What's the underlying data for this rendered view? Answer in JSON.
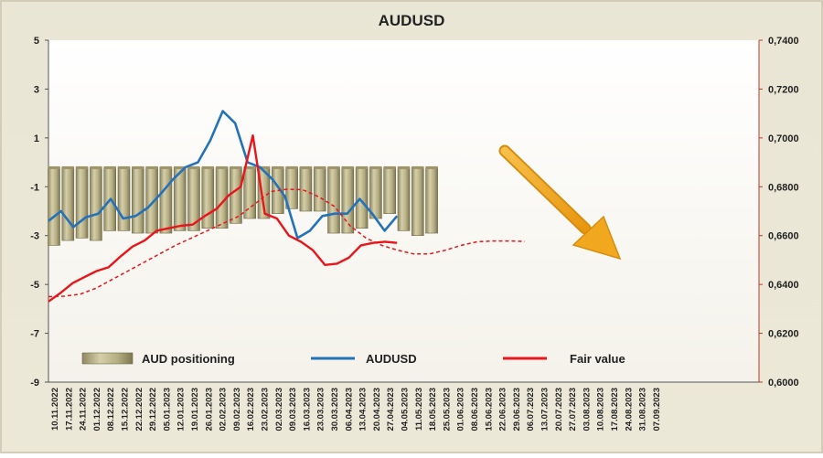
{
  "chart_data": {
    "type": "bar+line",
    "title": "AUDUSD",
    "x_dates": [
      "10.11.2022",
      "17.11.2022",
      "24.11.2022",
      "01.12.2022",
      "08.12.2022",
      "15.12.2022",
      "22.12.2022",
      "29.12.2022",
      "05.01.2023",
      "12.01.2023",
      "19.01.2023",
      "26.01.2023",
      "02.02.2023",
      "09.02.2023",
      "16.02.2023",
      "23.02.2023",
      "02.03.2023",
      "09.03.2023",
      "16.03.2023",
      "23.03.2023",
      "30.03.2023",
      "06.04.2023",
      "13.04.2023",
      "20.04.2023",
      "27.04.2023",
      "04.05.2023",
      "11.05.2023",
      "18.05.2023",
      "25.05.2023",
      "01.06.2023",
      "08.06.2023",
      "15.06.2023",
      "22.06.2023",
      "29.06.2023",
      "06.07.2023",
      "13.07.2023",
      "20.07.2023",
      "27.07.2023",
      "03.08.2023",
      "10.08.2023",
      "17.08.2023",
      "24.08.2023",
      "31.08.2023",
      "07.09.2023"
    ],
    "left_axis": {
      "min": -9,
      "max": 5,
      "ticks": [
        "5",
        "3",
        "1",
        "-1",
        "-3",
        "-5",
        "-7",
        "-9"
      ]
    },
    "right_axis": {
      "min": 0.6,
      "max": 0.74,
      "ticks": [
        "0,7400",
        "0,7200",
        "0,7000",
        "0,6800",
        "0,6600",
        "0,6400",
        "0,6200",
        "0,6000"
      ]
    },
    "series": [
      {
        "name": "AUD positioning",
        "kind": "bar",
        "axis": "left",
        "color": "#b5ad83",
        "values": [
          -3.4,
          -3.2,
          -3.1,
          -3.2,
          -2.8,
          -2.8,
          -2.9,
          -2.9,
          -2.9,
          -2.8,
          -2.8,
          -2.7,
          -2.7,
          -2.5,
          -2.3,
          -2.3,
          -2.1,
          -1.9,
          -2.0,
          -2.0,
          -2.9,
          -2.9,
          -2.7,
          -2.3,
          -2.1,
          -2.8,
          -3.0,
          -2.9
        ]
      },
      {
        "name": "AUDUSD",
        "kind": "line",
        "axis": "right",
        "color": "#2472b8",
        "values": [
          0.666,
          0.67,
          0.6635,
          0.6675,
          0.669,
          0.675,
          0.667,
          0.668,
          0.6715,
          0.677,
          0.683,
          0.688,
          0.69,
          0.699,
          0.711,
          0.706,
          0.69,
          0.688,
          0.683,
          0.676,
          0.659,
          0.662,
          0.668,
          0.669,
          0.669,
          0.675,
          0.669,
          0.662,
          0.668
        ]
      },
      {
        "name": "Fair value",
        "kind": "line",
        "axis": "right",
        "color": "#e8151b",
        "values": [
          0.633,
          0.6365,
          0.6405,
          0.643,
          0.6455,
          0.647,
          0.6515,
          0.6555,
          0.658,
          0.662,
          0.663,
          0.664,
          0.6645,
          0.668,
          0.671,
          0.6765,
          0.68,
          0.701,
          0.669,
          0.667,
          0.66,
          0.6575,
          0.654,
          0.648,
          0.6485,
          0.651,
          0.656,
          0.657,
          0.6575,
          0.657
        ]
      },
      {
        "name": "",
        "kind": "line",
        "dashed": true,
        "axis": "right",
        "color": "#e8151b",
        "values": [
          0.635,
          0.6352,
          0.636,
          0.6385,
          0.642,
          0.6455,
          0.649,
          0.6525,
          0.656,
          0.659,
          0.662,
          0.665,
          0.668,
          0.673,
          0.678,
          0.679,
          0.6788,
          0.676,
          0.672,
          0.664,
          0.659,
          0.656,
          0.654,
          0.6525,
          0.6525,
          0.654,
          0.656,
          0.6575,
          0.6578,
          0.6578,
          0.6576
        ]
      }
    ],
    "legend": {
      "position": "bottom",
      "items": [
        "AUD positioning",
        "AUDUSD",
        "Fair value"
      ]
    },
    "annotations": [
      {
        "kind": "arrow",
        "color": "#f2a81e",
        "direction": "down-right"
      }
    ],
    "grid": false
  }
}
